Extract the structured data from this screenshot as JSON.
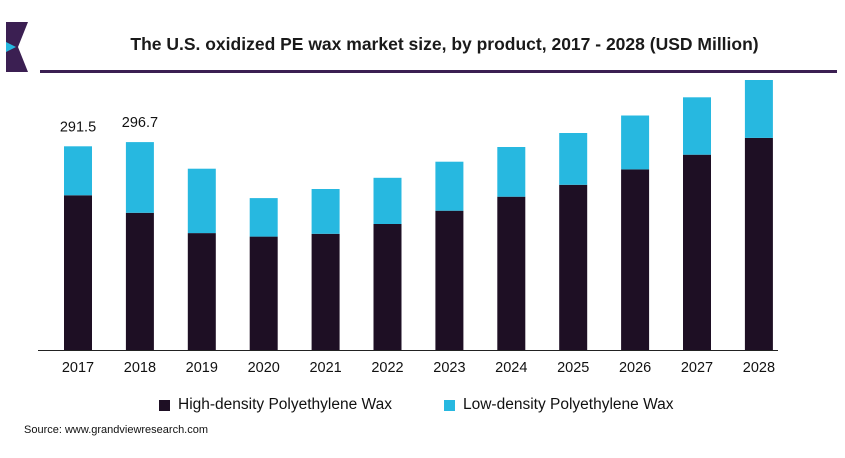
{
  "header": {
    "title": "The U.S. oxidized PE wax market size, by product, 2017 - 2028 (USD Million)"
  },
  "colors": {
    "high": "#1e0f24",
    "low": "#27b8e0",
    "accent": "#3b1f52",
    "axis": "#222222"
  },
  "chart_data": {
    "type": "bar",
    "stacked": true,
    "title": "The U.S. oxidized PE wax market size, by product, 2017 - 2028 (USD Million)",
    "categories": [
      "2017",
      "2018",
      "2019",
      "2020",
      "2021",
      "2022",
      "2023",
      "2024",
      "2025",
      "2026",
      "2027",
      "2028"
    ],
    "series": [
      {
        "name": "High-density Polyethylene Wax",
        "values": [
          221,
          196,
          167,
          162,
          166,
          180,
          199,
          219,
          236,
          258,
          279,
          303
        ]
      },
      {
        "name": "Low-density Polyethylene Wax",
        "values": [
          70,
          101,
          92,
          55,
          64,
          66,
          70,
          71,
          74,
          77,
          82,
          88
        ]
      }
    ],
    "data_labels": [
      "291.5",
      "296.7",
      "",
      "",
      "",
      "",
      "",
      "",
      "",
      "",
      "",
      ""
    ],
    "ylim": [
      0,
      400
    ],
    "xlabel": "",
    "ylabel": "",
    "grid": false,
    "legend_position": "bottom"
  },
  "footer": {
    "source": "Source: www.grandviewresearch.com"
  }
}
